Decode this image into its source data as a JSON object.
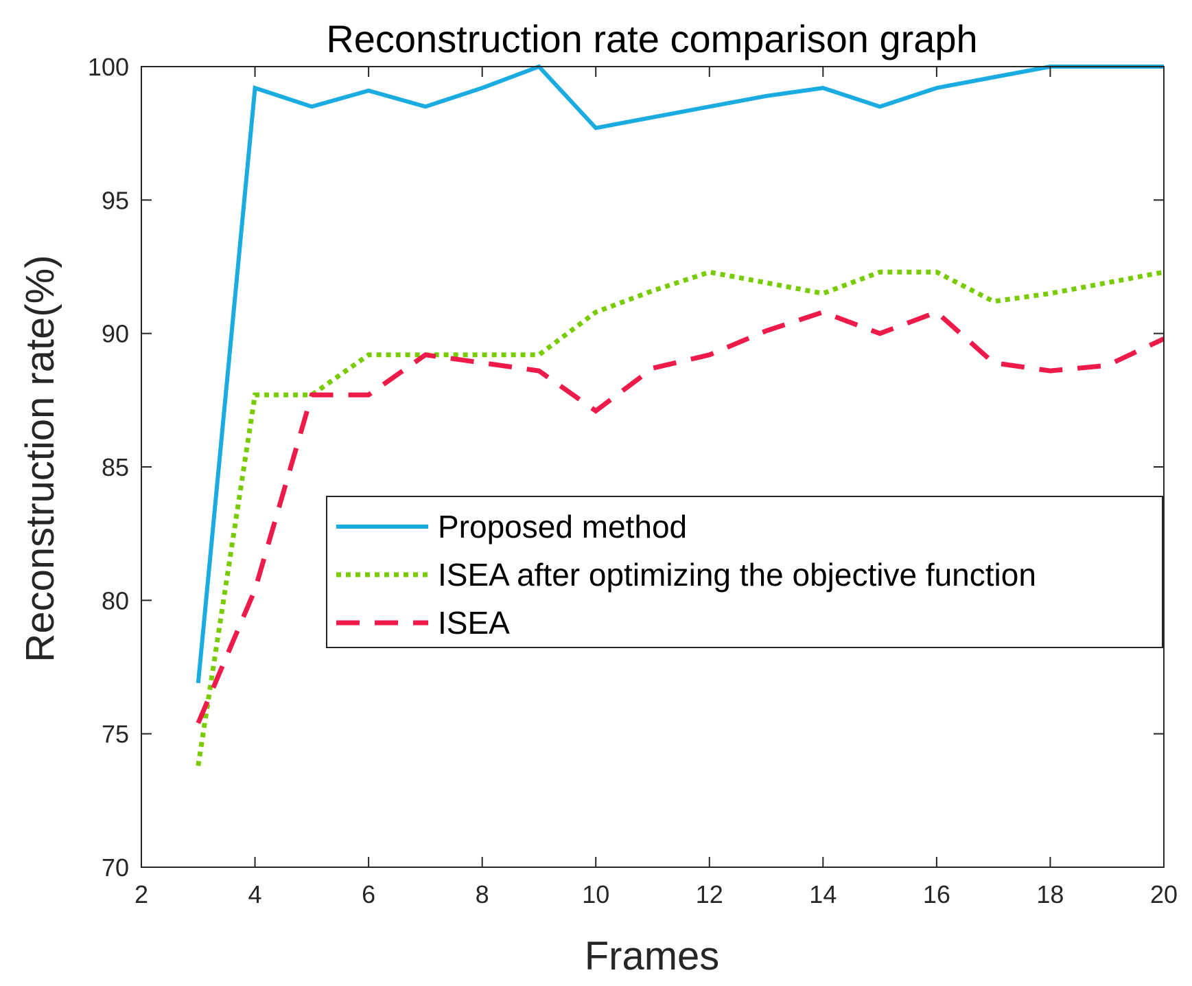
{
  "chart_data": {
    "type": "line",
    "title": "Reconstruction rate comparison graph",
    "xlabel": "Frames",
    "ylabel": "Reconstruction rate(%)",
    "xlim": [
      2,
      20
    ],
    "ylim": [
      70,
      100
    ],
    "xticks": [
      2,
      4,
      6,
      8,
      10,
      12,
      14,
      16,
      18,
      20
    ],
    "yticks": [
      70,
      75,
      80,
      85,
      90,
      95,
      100
    ],
    "grid": false,
    "legend_position": "center-right",
    "series": [
      {
        "name": "Proposed method",
        "color": "#1aabe0",
        "style": "solid",
        "x": [
          3,
          4,
          5,
          6,
          7,
          8,
          9,
          10,
          11,
          12,
          13,
          14,
          15,
          16,
          17,
          18,
          19,
          20
        ],
        "y": [
          76.9,
          99.2,
          98.5,
          99.1,
          98.5,
          99.2,
          100,
          97.7,
          98.1,
          98.5,
          98.9,
          99.2,
          98.5,
          99.2,
          99.6,
          100,
          100,
          100
        ]
      },
      {
        "name": "ISEA after optimizing the objective function",
        "color": "#77cc00",
        "style": "dotted",
        "x": [
          3,
          4,
          5,
          6,
          7,
          8,
          9,
          10,
          11,
          12,
          13,
          14,
          15,
          16,
          17,
          18,
          19,
          20
        ],
        "y": [
          73.8,
          87.7,
          87.7,
          89.2,
          89.2,
          89.2,
          89.2,
          90.8,
          91.6,
          92.3,
          91.9,
          91.5,
          92.3,
          92.3,
          91.2,
          91.5,
          91.9,
          92.3
        ]
      },
      {
        "name": "ISEA",
        "color": "#ee1a4a",
        "style": "dashed",
        "x": [
          3,
          4,
          5,
          6,
          7,
          8,
          9,
          10,
          11,
          12,
          13,
          14,
          15,
          16,
          17,
          18,
          19,
          20
        ],
        "y": [
          75.4,
          80.4,
          87.7,
          87.7,
          89.2,
          88.9,
          88.6,
          87.1,
          88.7,
          89.2,
          90.1,
          90.8,
          90.0,
          90.8,
          88.9,
          88.6,
          88.8,
          89.8
        ]
      }
    ]
  }
}
